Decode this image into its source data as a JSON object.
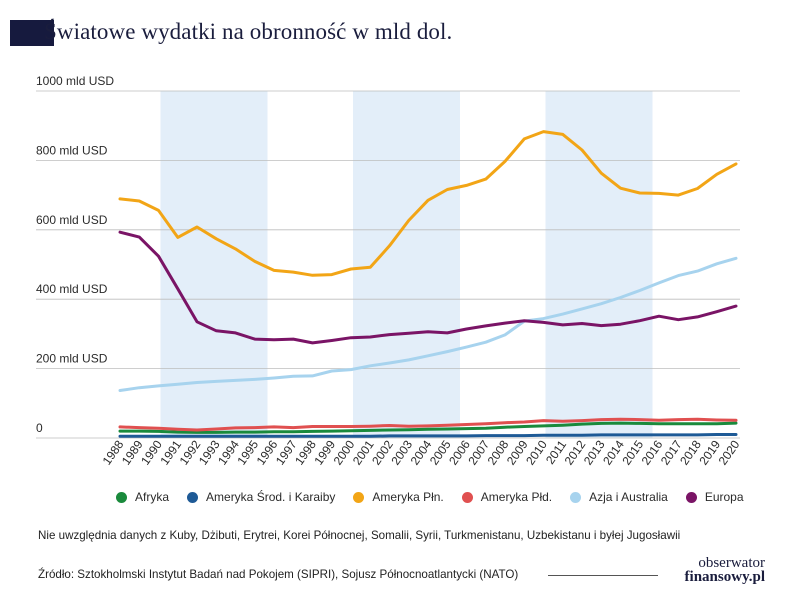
{
  "header": {
    "title": "Światowe wydatki na obronność w mld dol."
  },
  "chart_data": {
    "type": "line",
    "title": "Światowe wydatki na obronność w mld dol.",
    "xlabel": "",
    "ylabel": "",
    "ylim": [
      0,
      1000
    ],
    "y_ticks": [
      {
        "value": 0,
        "label": "0"
      },
      {
        "value": 200,
        "label": "200 mld USD"
      },
      {
        "value": 400,
        "label": "400 mld USD"
      },
      {
        "value": 600,
        "label": "600 mld USD"
      },
      {
        "value": 800,
        "label": "800 mld USD"
      },
      {
        "value": 1000,
        "label": "1000 mld USD"
      }
    ],
    "x": [
      "1988",
      "1989",
      "1990",
      "1991",
      "1992",
      "1993",
      "1994",
      "1995",
      "1996",
      "1997",
      "1998",
      "1999",
      "2000",
      "2001",
      "2002",
      "2003",
      "2004",
      "2005",
      "2006",
      "2007",
      "2008",
      "2009",
      "2010",
      "2011",
      "2012",
      "2013",
      "2014",
      "2015",
      "2016",
      "2017",
      "2018",
      "2019",
      "2020"
    ],
    "shaded_ranges": [
      [
        "1990",
        "1994"
      ],
      [
        "2000",
        "2004"
      ],
      [
        "2010",
        "2014"
      ]
    ],
    "series": [
      {
        "name": "Afryka",
        "color": "#1a8a3c",
        "values": [
          20,
          20,
          19,
          17,
          16,
          16,
          17,
          17,
          18,
          18,
          19,
          20,
          21,
          22,
          23,
          24,
          25,
          26,
          27,
          28,
          31,
          33,
          35,
          37,
          40,
          42,
          43,
          42,
          41,
          41,
          41,
          41,
          43
        ]
      },
      {
        "name": "Ameryka Środ. i Karaiby",
        "color": "#1e5a96",
        "values": [
          5,
          5,
          5,
          5,
          5,
          5,
          5,
          5,
          5,
          5,
          5,
          5,
          5,
          5,
          6,
          6,
          6,
          6,
          6,
          7,
          7,
          7,
          8,
          8,
          8,
          9,
          9,
          9,
          9,
          9,
          9,
          10,
          10
        ]
      },
      {
        "name": "Ameryka Płn.",
        "color": "#f2a516",
        "values": [
          689,
          683,
          656,
          578,
          608,
          574,
          545,
          509,
          483,
          478,
          469,
          471,
          487,
          492,
          554,
          627,
          685,
          716,
          728,
          746,
          797,
          862,
          883,
          875,
          830,
          763,
          720,
          706,
          705,
          700,
          719,
          760,
          790
        ]
      },
      {
        "name": "Ameryka Płd.",
        "color": "#e05050",
        "values": [
          32,
          30,
          28,
          25,
          23,
          26,
          29,
          30,
          32,
          30,
          33,
          33,
          33,
          34,
          36,
          34,
          35,
          37,
          39,
          41,
          44,
          46,
          50,
          48,
          50,
          53,
          54,
          53,
          51,
          53,
          54,
          52,
          51
        ]
      },
      {
        "name": "Azja i Australia",
        "color": "#a7d3ee",
        "values": [
          137,
          145,
          150,
          155,
          160,
          163,
          166,
          169,
          173,
          178,
          179,
          193,
          197,
          208,
          216,
          225,
          237,
          249,
          262,
          276,
          297,
          337,
          344,
          357,
          372,
          387,
          405,
          425,
          447,
          468,
          481,
          502,
          518
        ]
      },
      {
        "name": "Europa",
        "color": "#7a1466",
        "values": [
          593,
          579,
          524,
          430,
          335,
          309,
          303,
          285,
          283,
          285,
          274,
          281,
          289,
          291,
          298,
          302,
          306,
          303,
          314,
          323,
          331,
          338,
          333,
          326,
          330,
          324,
          328,
          338,
          351,
          341,
          349,
          364,
          380
        ]
      }
    ]
  },
  "legend": [
    {
      "label": "Afryka",
      "color": "#1a8a3c"
    },
    {
      "label": "Ameryka Środ. i Karaiby",
      "color": "#1e5a96"
    },
    {
      "label": "Ameryka Płn.",
      "color": "#f2a516"
    },
    {
      "label": "Ameryka Płd.",
      "color": "#e05050"
    },
    {
      "label": "Azja i Australia",
      "color": "#a7d3ee"
    },
    {
      "label": "Europa",
      "color": "#7a1466"
    }
  ],
  "footer": {
    "note": "Nie uwzględnia danych z Kuby, Dżibuti, Erytrei, Korei Północnej, Somalii, Syrii, Turkmenistanu, Uzbekistanu i byłej Jugosławii",
    "source": "Źródło: Sztokholmski Instytut Badań nad Pokojem (SIPRI), Sojusz Północnoatlantycki (NATO)"
  },
  "logo": {
    "line1": "obserwator",
    "line2": "finansowy.pl"
  }
}
